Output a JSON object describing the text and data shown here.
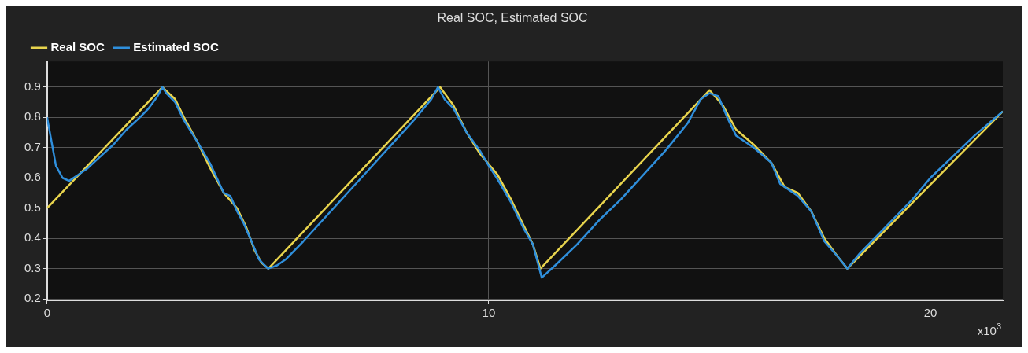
{
  "chart_data": {
    "type": "line",
    "title": "Real SOC, Estimated SOC",
    "annotations": [
      "x10$^{3}$"
    ],
    "xlim": [
      0,
      21.64
    ],
    "xticks": [
      0,
      10,
      20
    ],
    "ylim": [
      0.195,
      0.985
    ],
    "yticks": [
      0.2,
      0.3,
      0.4,
      0.5,
      0.6,
      0.7,
      0.8,
      0.9
    ],
    "grid": true,
    "legend": "top left",
    "marker": "none",
    "line_style": "solid",
    "series": [
      {
        "name": "Real SOC",
        "color": "#e8d44d",
        "x": [
          0,
          2.61,
          2.9,
          3.1,
          3.4,
          3.7,
          4.0,
          4.3,
          4.5,
          4.7,
          4.85,
          5.01,
          8.9,
          9.2,
          9.5,
          9.8,
          10.2,
          10.5,
          10.8,
          11.0,
          11.17,
          15.0,
          15.3,
          15.6,
          16.0,
          16.4,
          16.7,
          17.0,
          17.3,
          17.6,
          17.9,
          18.12,
          21.64
        ],
        "values": [
          0.5,
          0.9,
          0.86,
          0.8,
          0.72,
          0.63,
          0.55,
          0.5,
          0.44,
          0.36,
          0.32,
          0.3,
          0.9,
          0.84,
          0.75,
          0.68,
          0.61,
          0.53,
          0.44,
          0.38,
          0.3,
          0.89,
          0.84,
          0.76,
          0.71,
          0.65,
          0.57,
          0.55,
          0.49,
          0.4,
          0.34,
          0.3,
          0.82
        ]
      },
      {
        "name": "Estimated SOC",
        "color": "#2f8fdc",
        "x": [
          0,
          0.1,
          0.2,
          0.35,
          0.5,
          0.7,
          0.9,
          1.2,
          1.5,
          1.8,
          2.1,
          2.3,
          2.5,
          2.61,
          2.7,
          2.9,
          3.1,
          3.4,
          3.7,
          4.0,
          4.15,
          4.3,
          4.45,
          4.6,
          4.8,
          5.0,
          5.2,
          5.4,
          5.8,
          6.3,
          6.8,
          7.3,
          7.8,
          8.3,
          8.7,
          8.85,
          9.0,
          9.2,
          9.5,
          9.8,
          10.0,
          10.2,
          10.5,
          10.8,
          11.0,
          11.2,
          11.5,
          12.0,
          12.5,
          13.0,
          13.5,
          14.0,
          14.5,
          14.8,
          15.0,
          15.2,
          15.4,
          15.6,
          16.0,
          16.4,
          16.6,
          16.8,
          17.0,
          17.3,
          17.6,
          17.9,
          18.12,
          18.4,
          18.8,
          19.2,
          19.6,
          20.0,
          20.5,
          21.0,
          21.64
        ],
        "values": [
          0.8,
          0.72,
          0.64,
          0.6,
          0.59,
          0.61,
          0.63,
          0.67,
          0.71,
          0.76,
          0.8,
          0.83,
          0.87,
          0.9,
          0.88,
          0.85,
          0.79,
          0.72,
          0.645,
          0.55,
          0.54,
          0.49,
          0.45,
          0.4,
          0.33,
          0.3,
          0.31,
          0.33,
          0.39,
          0.47,
          0.55,
          0.63,
          0.71,
          0.79,
          0.86,
          0.9,
          0.86,
          0.83,
          0.75,
          0.69,
          0.64,
          0.595,
          0.52,
          0.43,
          0.38,
          0.27,
          0.31,
          0.38,
          0.46,
          0.53,
          0.61,
          0.69,
          0.78,
          0.86,
          0.88,
          0.87,
          0.8,
          0.74,
          0.7,
          0.65,
          0.58,
          0.56,
          0.54,
          0.49,
          0.39,
          0.34,
          0.3,
          0.35,
          0.41,
          0.47,
          0.53,
          0.6,
          0.67,
          0.74,
          0.82
        ]
      }
    ]
  }
}
